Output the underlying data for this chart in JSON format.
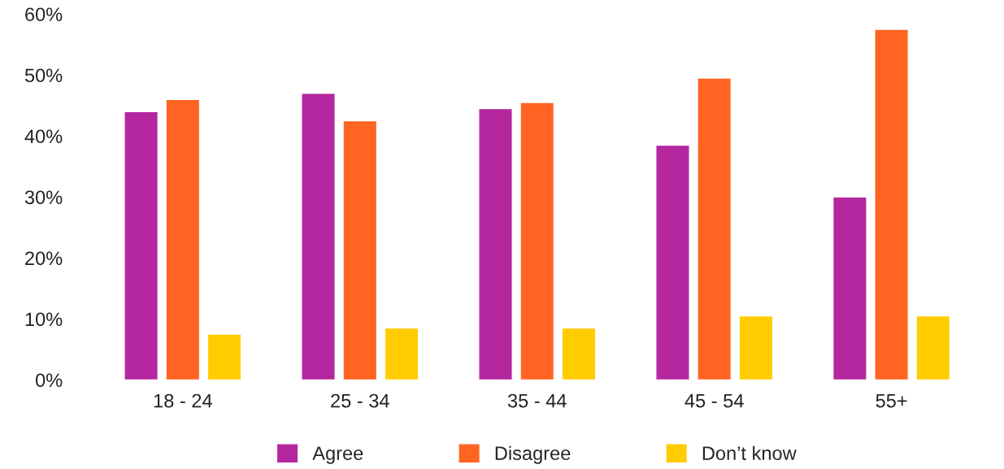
{
  "chart_data": {
    "type": "bar",
    "categories": [
      "18 - 24",
      "25 - 34",
      "35 - 44",
      "45 - 54",
      "55+"
    ],
    "series": [
      {
        "name": "Agree",
        "color": "#b5279f",
        "values": [
          44,
          47,
          44.5,
          38.5,
          30
        ]
      },
      {
        "name": "Disagree",
        "color": "#ff6422",
        "values": [
          46,
          42.5,
          45.5,
          49.5,
          57.5
        ]
      },
      {
        "name": "Don’t know",
        "color": "#ffcc00",
        "values": [
          7.5,
          8.5,
          8.5,
          10.5,
          10.5
        ]
      }
    ],
    "ylim": [
      0,
      60
    ],
    "yticks": [
      {
        "value": 0,
        "label": "0%"
      },
      {
        "value": 10,
        "label": "10%"
      },
      {
        "value": 20,
        "label": "20%"
      },
      {
        "value": 30,
        "label": "30%"
      },
      {
        "value": 40,
        "label": "40%"
      },
      {
        "value": 50,
        "label": "50%"
      },
      {
        "value": 60,
        "label": "60%"
      }
    ],
    "grid": false,
    "legend": "bottom"
  }
}
